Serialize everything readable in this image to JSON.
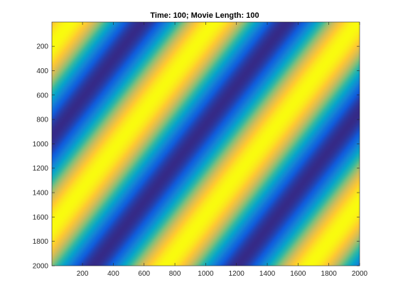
{
  "chart_data": {
    "type": "heatmap",
    "title": "Time: 100; Movie Length: 100",
    "xlabel": "",
    "ylabel": "",
    "xlim": [
      1,
      2000
    ],
    "ylim": [
      1,
      2000
    ],
    "y_direction": "reversed",
    "x_ticks": [
      200,
      400,
      600,
      800,
      1000,
      1200,
      1400,
      1600,
      1800,
      2000
    ],
    "y_ticks": [
      200,
      400,
      600,
      800,
      1000,
      1200,
      1400,
      1600,
      1800,
      2000
    ],
    "x_tick_labels": [
      "200",
      "400",
      "600",
      "800",
      "1000",
      "1200",
      "1400",
      "1600",
      "1800",
      "2000"
    ],
    "y_tick_labels": [
      "200",
      "400",
      "600",
      "800",
      "1000",
      "1200",
      "1400",
      "1600",
      "1800",
      "2000"
    ],
    "field": {
      "pattern": "diagonal sinusoidal stripes",
      "direction": "x + y",
      "period": 1150,
      "max_at_x_plus_y": 150
    },
    "colormap": "parula",
    "colormap_stops": [
      "#352a87",
      "#0f5cdd",
      "#1481d6",
      "#06a4ca",
      "#2eb7a4",
      "#87bf77",
      "#d1bb59",
      "#fec832",
      "#f9fb0e"
    ],
    "grid": false,
    "box": true
  }
}
